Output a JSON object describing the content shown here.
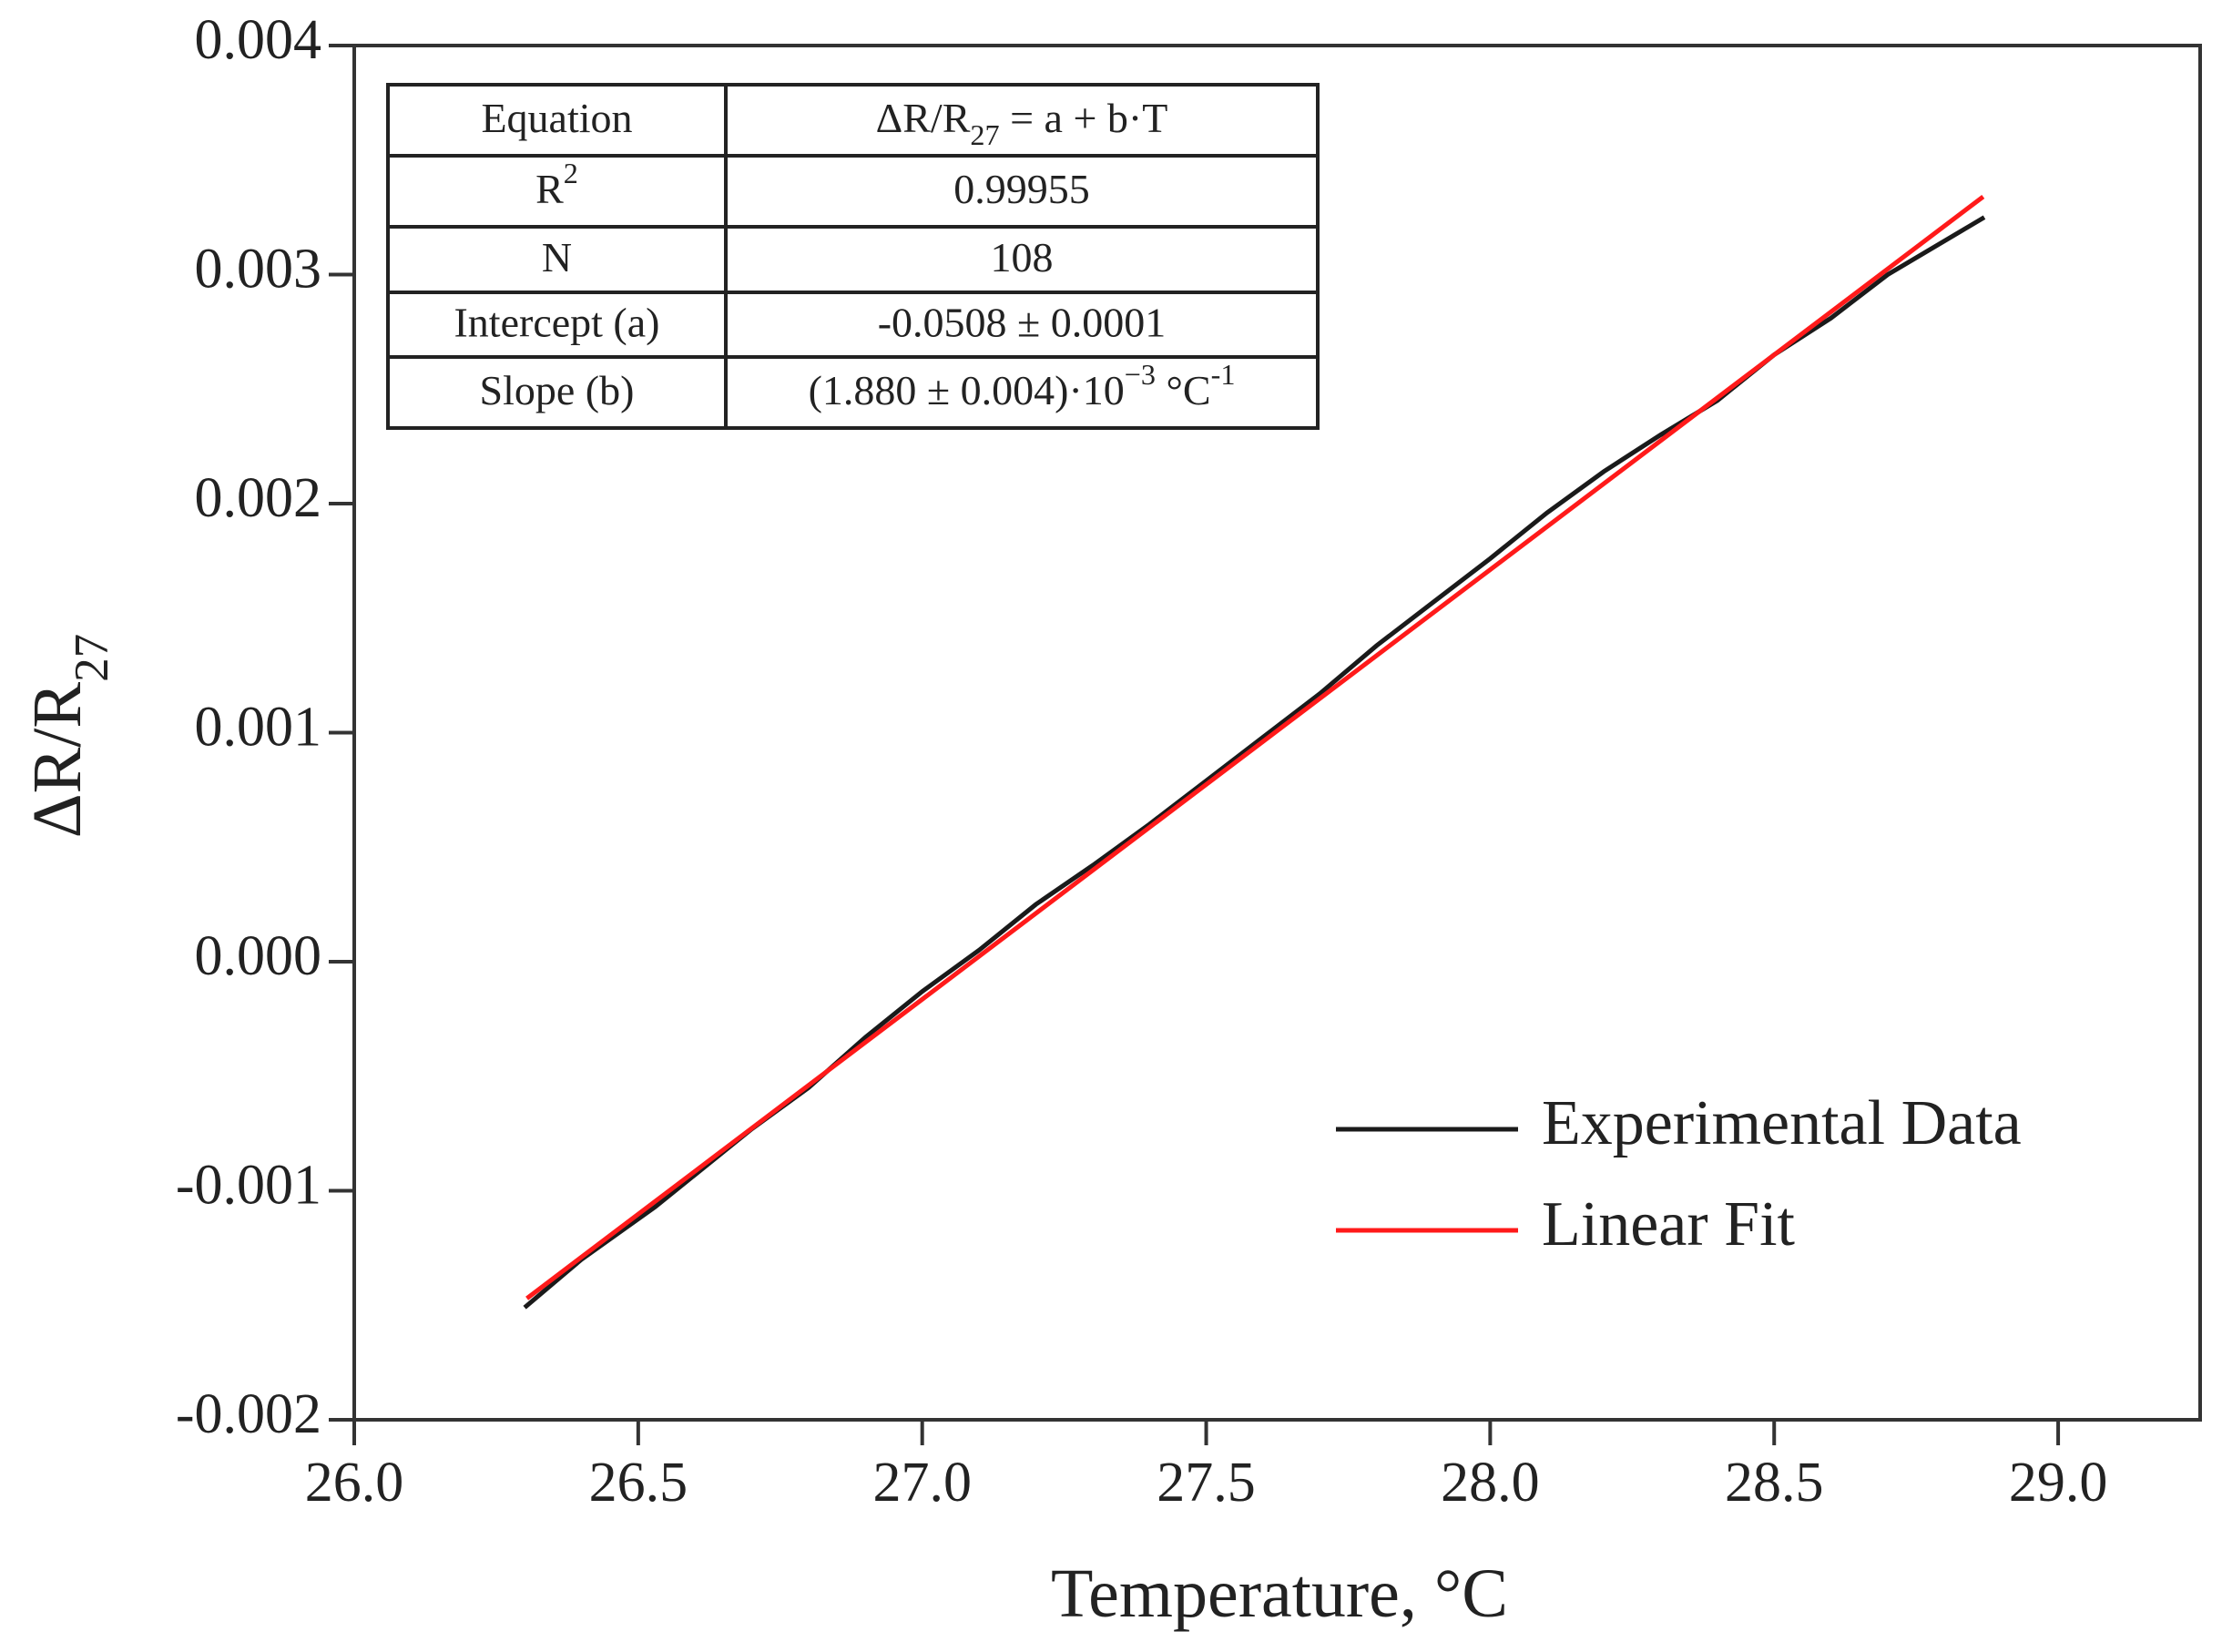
{
  "chart_data": {
    "type": "line",
    "xlabel": "Temperature, °C",
    "ylabel": [
      {
        "text": "ΔR/R"
      },
      {
        "text": "27",
        "shift": "sub"
      }
    ],
    "xlim": [
      26.0,
      29.25
    ],
    "ylim": [
      -0.002,
      0.004
    ],
    "xticks": [
      {
        "value": 26.0,
        "label": "26.0"
      },
      {
        "value": 26.5,
        "label": "26.5"
      },
      {
        "value": 27.0,
        "label": "27.0"
      },
      {
        "value": 27.5,
        "label": "27.5"
      },
      {
        "value": 28.0,
        "label": "28.0"
      },
      {
        "value": 28.5,
        "label": "28.5"
      },
      {
        "value": 29.0,
        "label": "29.0"
      }
    ],
    "yticks": [
      {
        "value": -0.002,
        "label": "-0.002"
      },
      {
        "value": -0.001,
        "label": "-0.001"
      },
      {
        "value": 0,
        "label": "0.000"
      },
      {
        "value": 0.001,
        "label": "0.001"
      },
      {
        "value": 0.002,
        "label": "0.002"
      },
      {
        "value": 0.003,
        "label": "0.003"
      },
      {
        "value": 0.004,
        "label": "0.004"
      }
    ],
    "legend": "lower right",
    "series": [
      {
        "name": "Experimental Data",
        "color": "#1a1a1a",
        "x": [
          26.3,
          26.4,
          26.53,
          26.6,
          26.7,
          26.8,
          26.9,
          27.0,
          27.1,
          27.2,
          27.3,
          27.4,
          27.5,
          27.6,
          27.7,
          27.8,
          27.9,
          28.0,
          28.1,
          28.2,
          28.3,
          28.4,
          28.5,
          28.6,
          28.7,
          28.87
        ],
        "values": [
          -0.00151,
          -0.0013,
          -0.00107,
          -0.00093,
          -0.00073,
          -0.00055,
          -0.00033,
          -0.00013,
          5e-05,
          0.00025,
          0.00042,
          0.0006,
          0.00079,
          0.00098,
          0.00117,
          0.00138,
          0.00157,
          0.00176,
          0.00196,
          0.00214,
          0.0023,
          0.00245,
          0.00265,
          0.00281,
          0.003,
          0.00325
        ]
      },
      {
        "name": "Linear Fit",
        "color": "#ff1a1a",
        "x": [
          26.304,
          28.868
        ],
        "values": [
          -0.00147,
          0.00334
        ]
      }
    ],
    "table": [
      [
        [
          {
            "text": "Equation"
          }
        ],
        [
          {
            "text": "ΔR/R"
          },
          {
            "text": "27",
            "shift": "sub"
          },
          {
            "text": " = a + b·T"
          }
        ]
      ],
      [
        [
          {
            "text": "R"
          },
          {
            "text": "2",
            "shift": "super"
          }
        ],
        [
          {
            "text": "0.99955"
          }
        ]
      ],
      [
        [
          {
            "text": "N"
          }
        ],
        [
          {
            "text": "108"
          }
        ]
      ],
      [
        [
          {
            "text": "Intercept (a)"
          }
        ],
        [
          {
            "text": "-0.0508 ± 0.0001"
          }
        ]
      ],
      [
        [
          {
            "text": "Slope (b)"
          }
        ],
        [
          {
            "text": "(1.880 ± 0.004)·10"
          },
          {
            "text": "−3",
            "shift": "super"
          },
          {
            "text": " °C"
          },
          {
            "text": "-1",
            "shift": "super"
          }
        ]
      ]
    ]
  }
}
